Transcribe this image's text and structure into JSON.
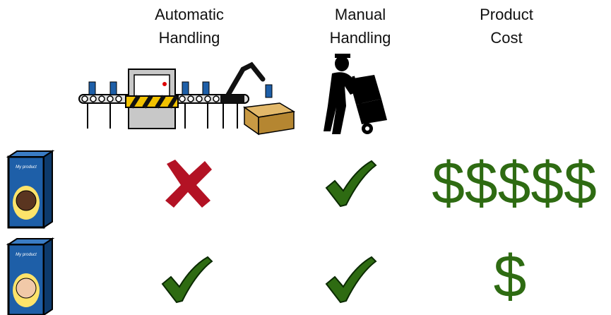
{
  "columns": [
    {
      "title": [
        "Automatic",
        "Handling"
      ]
    },
    {
      "title": [
        "Manual",
        "Handling"
      ]
    },
    {
      "title": [
        "Product",
        "Cost"
      ]
    }
  ],
  "rows": [
    {
      "product_label": "My product",
      "cost": "$$$$$"
    },
    {
      "product_label": "My product",
      "cost": "$"
    }
  ]
}
